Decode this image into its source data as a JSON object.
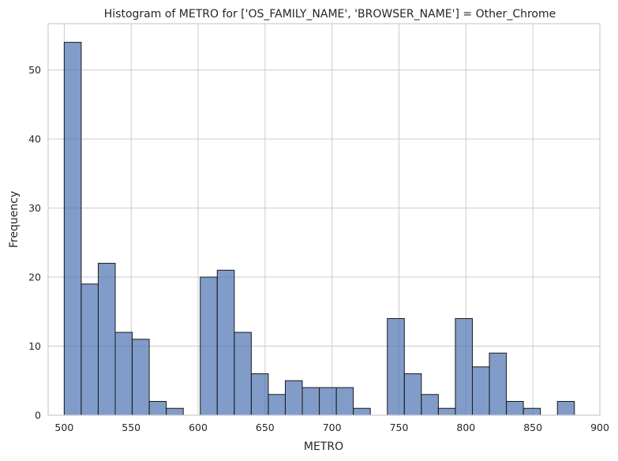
{
  "chart_data": {
    "type": "bar",
    "title": "Histogram of METRO for ['OS_FAMILY_NAME', 'BROWSER_NAME'] = Other_Chrome",
    "xlabel": "METRO",
    "ylabel": "Frequency",
    "xlim": [
      488,
      900
    ],
    "ylim": [
      0,
      56.7
    ],
    "xticks": [
      500,
      550,
      600,
      650,
      700,
      750,
      800,
      850,
      900
    ],
    "yticks": [
      0,
      10,
      20,
      30,
      40,
      50
    ],
    "grid": true,
    "bar_color": "#4c72b0",
    "bar_opacity": 0.7,
    "bar_edge_color": "#1a1a1a",
    "bin_width": 12.7,
    "bins": [
      {
        "x0": 500.0,
        "x1": 512.7,
        "count": 54
      },
      {
        "x0": 512.7,
        "x1": 525.4,
        "count": 19
      },
      {
        "x0": 525.4,
        "x1": 538.1,
        "count": 22
      },
      {
        "x0": 538.1,
        "x1": 550.8,
        "count": 12
      },
      {
        "x0": 550.8,
        "x1": 563.5,
        "count": 11
      },
      {
        "x0": 563.5,
        "x1": 576.2,
        "count": 2
      },
      {
        "x0": 576.2,
        "x1": 588.9,
        "count": 1
      },
      {
        "x0": 588.9,
        "x1": 601.6,
        "count": 0
      },
      {
        "x0": 601.6,
        "x1": 614.3,
        "count": 20
      },
      {
        "x0": 614.3,
        "x1": 627.0,
        "count": 21
      },
      {
        "x0": 627.0,
        "x1": 639.7,
        "count": 12
      },
      {
        "x0": 639.7,
        "x1": 652.4,
        "count": 6
      },
      {
        "x0": 652.4,
        "x1": 665.1,
        "count": 3
      },
      {
        "x0": 665.1,
        "x1": 677.8,
        "count": 5
      },
      {
        "x0": 677.8,
        "x1": 690.5,
        "count": 4
      },
      {
        "x0": 690.5,
        "x1": 703.2,
        "count": 4
      },
      {
        "x0": 703.2,
        "x1": 715.9,
        "count": 4
      },
      {
        "x0": 715.9,
        "x1": 728.6,
        "count": 1
      },
      {
        "x0": 728.6,
        "x1": 741.3,
        "count": 0
      },
      {
        "x0": 741.3,
        "x1": 754.0,
        "count": 14
      },
      {
        "x0": 754.0,
        "x1": 766.7,
        "count": 6
      },
      {
        "x0": 766.7,
        "x1": 779.4,
        "count": 3
      },
      {
        "x0": 779.4,
        "x1": 792.1,
        "count": 1
      },
      {
        "x0": 792.1,
        "x1": 804.8,
        "count": 14
      },
      {
        "x0": 804.8,
        "x1": 817.5,
        "count": 7
      },
      {
        "x0": 817.5,
        "x1": 830.2,
        "count": 9
      },
      {
        "x0": 830.2,
        "x1": 842.9,
        "count": 2
      },
      {
        "x0": 842.9,
        "x1": 855.6,
        "count": 1
      },
      {
        "x0": 855.6,
        "x1": 868.3,
        "count": 0
      },
      {
        "x0": 868.3,
        "x1": 881.0,
        "count": 2
      }
    ]
  }
}
